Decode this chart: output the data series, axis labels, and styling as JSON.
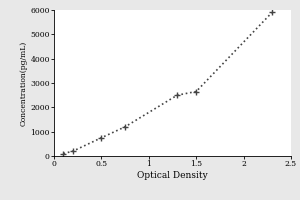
{
  "x_points": [
    0.1,
    0.2,
    0.5,
    0.75,
    1.3,
    1.5,
    2.3
  ],
  "y_points": [
    100,
    200,
    750,
    1200,
    2500,
    2650,
    5900
  ],
  "xlabel": "Optical Density",
  "ylabel": "Concentration(pg/mL)",
  "xlim": [
    0,
    2.5
  ],
  "ylim": [
    0,
    6000
  ],
  "xticks": [
    0,
    0.5,
    1,
    1.5,
    2,
    2.5
  ],
  "yticks": [
    0,
    1000,
    2000,
    3000,
    4000,
    5000,
    6000
  ],
  "line_color": "#444444",
  "marker_color": "#444444",
  "background_color": "#e8e8e8",
  "plot_bg_color": "#ffffff",
  "line_style": "dotted",
  "marker_style": "+",
  "marker_size": 5,
  "line_width": 1.2
}
